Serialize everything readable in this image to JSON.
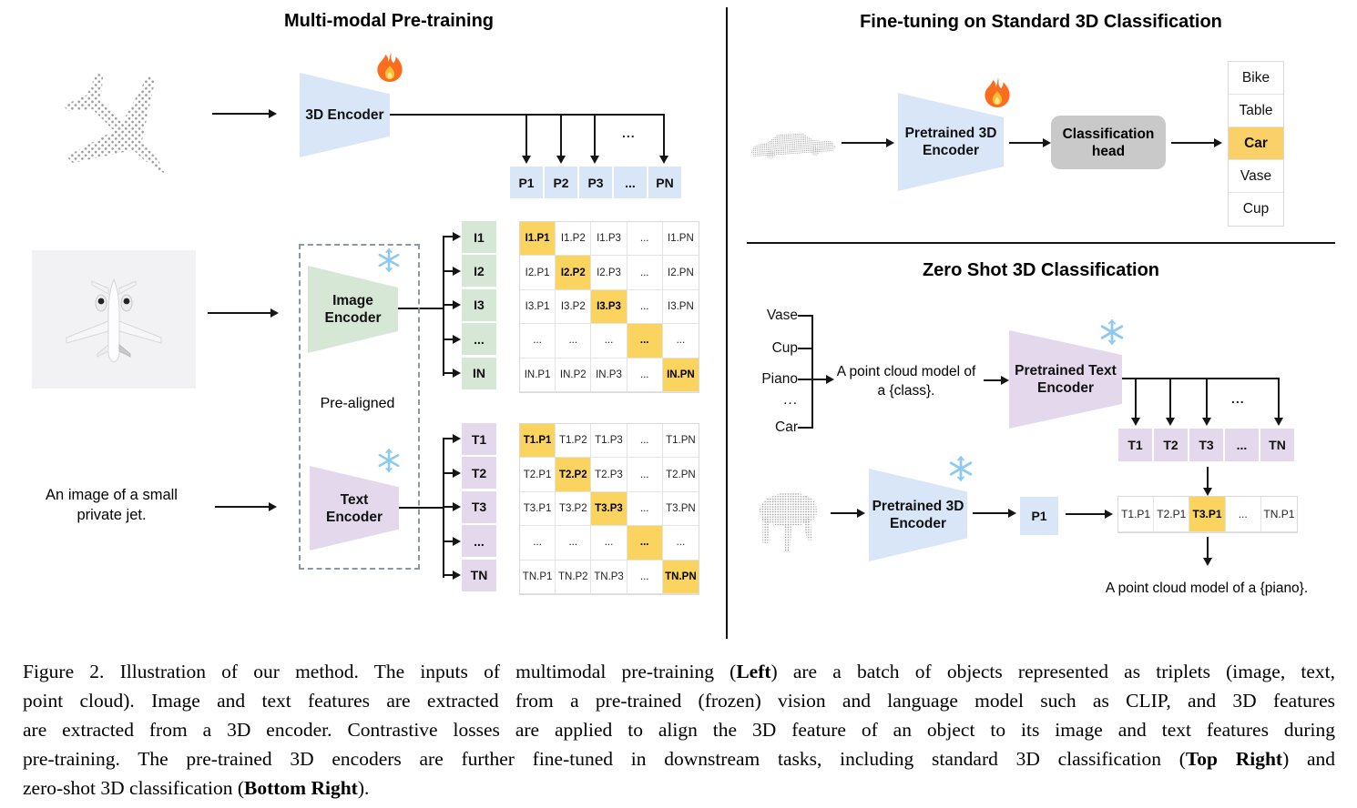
{
  "icons": {
    "fire": "🔥",
    "snowflake": "❄"
  },
  "colors": {
    "blue": "#d9e6f8",
    "green": "#d6e8d5",
    "purple": "#e4d9ec",
    "highlight": "#fbd45f",
    "gray_head": "#c9c9c9"
  },
  "left_panel": {
    "title": "Multi-modal Pre-training",
    "encoder_3d_label": "3D Encoder",
    "image_encoder": [
      "Image",
      "Encoder"
    ],
    "text_encoder": [
      "Text",
      "Encoder"
    ],
    "pre_aligned_label": "Pre-aligned",
    "image_caption": [
      "An image of a small",
      "private jet."
    ],
    "ellipsis": "...",
    "p_row": [
      "P1",
      "P2",
      "P3",
      "...",
      "PN"
    ],
    "i_col": [
      "I1",
      "I2",
      "I3",
      "...",
      "IN"
    ],
    "t_col": [
      "T1",
      "T2",
      "T3",
      "...",
      "TN"
    ],
    "i_matrix": [
      [
        "I1.P1",
        "I1.P2",
        "I1.P3",
        "...",
        "I1.PN"
      ],
      [
        "I2.P1",
        "I2.P2",
        "I2.P3",
        "...",
        "I2.PN"
      ],
      [
        "I3.P1",
        "I3.P2",
        "I3.P3",
        "...",
        "I3.PN"
      ],
      [
        "...",
        "...",
        "...",
        "...",
        "..."
      ],
      [
        "IN.P1",
        "IN.P2",
        "IN.P3",
        "...",
        "IN.PN"
      ]
    ],
    "t_matrix": [
      [
        "T1.P1",
        "T1.P2",
        "T1.P3",
        "...",
        "T1.PN"
      ],
      [
        "T2.P1",
        "T2.P2",
        "T2.P3",
        "...",
        "T2.PN"
      ],
      [
        "T3.P1",
        "T3.P2",
        "T3.P3",
        "...",
        "T3.PN"
      ],
      [
        "...",
        "...",
        "...",
        "...",
        "..."
      ],
      [
        "TN.P1",
        "TN.P2",
        "TN.P3",
        "...",
        "TN.PN"
      ]
    ]
  },
  "right_top": {
    "title": "Fine-tuning on Standard 3D Classification",
    "encoder": [
      "Pretrained 3D",
      "Encoder"
    ],
    "head": [
      "Classification",
      "head"
    ],
    "classes": [
      "Bike",
      "Table",
      "Car",
      "Vase",
      "Cup"
    ],
    "predicted_class": "Car"
  },
  "right_bottom": {
    "title": "Zero Shot 3D Classification",
    "classes": [
      "Vase",
      "Cup",
      "Piano",
      "...",
      "Car"
    ],
    "prompt": [
      "A point cloud model of",
      "a {class}."
    ],
    "text_encoder": [
      "Pretrained Text",
      "Encoder"
    ],
    "t_row": [
      "T1",
      "T2",
      "T3",
      "...",
      "TN"
    ],
    "encoder_3d": [
      "Pretrained 3D",
      "Encoder"
    ],
    "p1_label": "P1",
    "tp_row": [
      "T1.P1",
      "T2.P1",
      "T3.P1",
      "...",
      "TN.P1"
    ],
    "ellipsis": "...",
    "result": "A point cloud model of a {piano}."
  },
  "caption": {
    "lines": [
      [
        [
          "Figure 2. Illustration of our method. The inputs of multimodal pre-training (",
          0
        ],
        [
          "Left",
          1
        ],
        [
          ") are a batch of objects represented as triplets (image, text,",
          0
        ]
      ],
      [
        [
          "point cloud). Image and text features are extracted from a pre-trained (frozen) vision and language model such as CLIP, and 3D features",
          0
        ]
      ],
      [
        [
          "are extracted from a 3D encoder. Contrastive losses are applied to align the 3D feature of an object to its image and text features during",
          0
        ]
      ],
      [
        [
          "pre-training. The pre-trained 3D encoders are further fine-tuned in downstream tasks, including standard 3D classification (",
          0
        ],
        [
          "Top Right",
          1
        ],
        [
          ") and",
          0
        ]
      ],
      [
        [
          "zero-shot 3D classification (",
          0
        ],
        [
          "Bottom Right",
          1
        ],
        [
          ").",
          0
        ]
      ]
    ]
  }
}
